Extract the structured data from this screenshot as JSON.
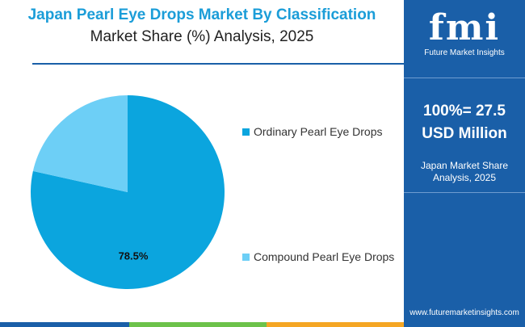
{
  "header": {
    "title": "Japan Pearl Eye Drops Market By Classification",
    "subtitle": "Market Share (%) Analysis, 2025"
  },
  "chart_data": {
    "type": "pie",
    "slices": [
      {
        "label": "Ordinary Pearl Eye Drops",
        "value": 78.5,
        "value_label": "78.5%",
        "color": "#0ba5de"
      },
      {
        "label": "Compound Pearl Eye Drops",
        "value": 21.5,
        "value_label": "",
        "color": "#6dcff6"
      }
    ],
    "legend_position": "right"
  },
  "side_panel": {
    "logo_text": "fmi",
    "logo_subtext": "Future Market Insights",
    "total_line1": "100%= 27.5",
    "total_line2": "USD Million",
    "share_line1": "Japan Market Share",
    "share_line2": "Analysis, 2025",
    "website": "www.futuremarketinsights.com",
    "background": "#1a5fa8"
  },
  "bottom_bar_colors": [
    "#1a5fa8",
    "#6cc24a",
    "#f5a623"
  ]
}
